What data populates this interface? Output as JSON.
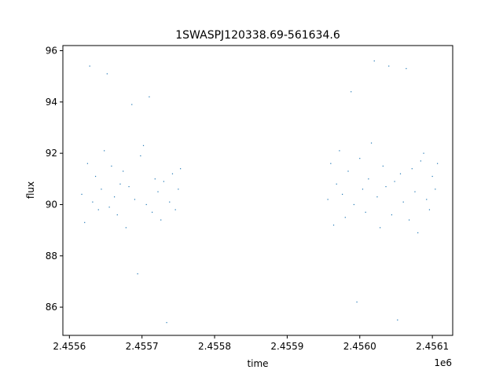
{
  "chart_data": {
    "type": "scatter",
    "title": "1SWASPJ120338.69-561634.6",
    "xlabel": "time",
    "ylabel": "flux",
    "x_offset_label": "1e6",
    "xlim": [
      2455591,
      2456128
    ],
    "ylim": [
      84.9,
      96.2
    ],
    "x_ticks": [
      2455600,
      2455700,
      2455800,
      2455900,
      2456000,
      2456100
    ],
    "x_tick_labels": [
      "2.4556",
      "2.4557",
      "2.4558",
      "2.4559",
      "2.4560",
      "2.4561"
    ],
    "y_ticks": [
      86,
      88,
      90,
      92,
      94,
      96
    ],
    "y_tick_labels": [
      "86",
      "88",
      "90",
      "92",
      "94",
      "96"
    ],
    "grid": false,
    "marker_color": "#1f77b4",
    "points": [
      {
        "x": 2455617,
        "y": 90.4
      },
      {
        "x": 2455621,
        "y": 89.3
      },
      {
        "x": 2455625,
        "y": 91.6
      },
      {
        "x": 2455628,
        "y": 95.4
      },
      {
        "x": 2455632,
        "y": 90.1
      },
      {
        "x": 2455636,
        "y": 91.1
      },
      {
        "x": 2455640,
        "y": 89.8
      },
      {
        "x": 2455644,
        "y": 90.6
      },
      {
        "x": 2455648,
        "y": 92.1
      },
      {
        "x": 2455652,
        "y": 95.1
      },
      {
        "x": 2455655,
        "y": 89.9
      },
      {
        "x": 2455658,
        "y": 91.5
      },
      {
        "x": 2455662,
        "y": 90.3
      },
      {
        "x": 2455666,
        "y": 89.6
      },
      {
        "x": 2455670,
        "y": 90.8
      },
      {
        "x": 2455674,
        "y": 91.3
      },
      {
        "x": 2455678,
        "y": 89.1
      },
      {
        "x": 2455682,
        "y": 90.7
      },
      {
        "x": 2455686,
        "y": 93.9
      },
      {
        "x": 2455690,
        "y": 90.2
      },
      {
        "x": 2455694,
        "y": 87.3
      },
      {
        "x": 2455698,
        "y": 91.9
      },
      {
        "x": 2455702,
        "y": 92.3
      },
      {
        "x": 2455706,
        "y": 90.0
      },
      {
        "x": 2455710,
        "y": 94.2
      },
      {
        "x": 2455714,
        "y": 89.7
      },
      {
        "x": 2455718,
        "y": 91.0
      },
      {
        "x": 2455722,
        "y": 90.5
      },
      {
        "x": 2455726,
        "y": 89.4
      },
      {
        "x": 2455730,
        "y": 90.9
      },
      {
        "x": 2455734,
        "y": 85.4
      },
      {
        "x": 2455738,
        "y": 90.1
      },
      {
        "x": 2455742,
        "y": 91.2
      },
      {
        "x": 2455746,
        "y": 89.8
      },
      {
        "x": 2455750,
        "y": 90.6
      },
      {
        "x": 2455753,
        "y": 91.4
      },
      {
        "x": 2455956,
        "y": 90.2
      },
      {
        "x": 2455960,
        "y": 91.6
      },
      {
        "x": 2455964,
        "y": 89.2
      },
      {
        "x": 2455968,
        "y": 90.8
      },
      {
        "x": 2455972,
        "y": 92.1
      },
      {
        "x": 2455976,
        "y": 90.4
      },
      {
        "x": 2455980,
        "y": 89.5
      },
      {
        "x": 2455984,
        "y": 91.3
      },
      {
        "x": 2455988,
        "y": 94.4
      },
      {
        "x": 2455992,
        "y": 90.0
      },
      {
        "x": 2455996,
        "y": 86.2
      },
      {
        "x": 2456000,
        "y": 91.8
      },
      {
        "x": 2456004,
        "y": 90.6
      },
      {
        "x": 2456008,
        "y": 89.7
      },
      {
        "x": 2456012,
        "y": 91.0
      },
      {
        "x": 2456016,
        "y": 92.4
      },
      {
        "x": 2456020,
        "y": 95.6
      },
      {
        "x": 2456024,
        "y": 90.3
      },
      {
        "x": 2456028,
        "y": 89.1
      },
      {
        "x": 2456032,
        "y": 91.5
      },
      {
        "x": 2456036,
        "y": 90.7
      },
      {
        "x": 2456040,
        "y": 95.4
      },
      {
        "x": 2456044,
        "y": 89.6
      },
      {
        "x": 2456048,
        "y": 90.9
      },
      {
        "x": 2456052,
        "y": 85.5
      },
      {
        "x": 2456056,
        "y": 91.2
      },
      {
        "x": 2456060,
        "y": 90.1
      },
      {
        "x": 2456064,
        "y": 95.3
      },
      {
        "x": 2456068,
        "y": 89.4
      },
      {
        "x": 2456072,
        "y": 91.4
      },
      {
        "x": 2456076,
        "y": 90.5
      },
      {
        "x": 2456080,
        "y": 88.9
      },
      {
        "x": 2456084,
        "y": 91.7
      },
      {
        "x": 2456088,
        "y": 92.0
      },
      {
        "x": 2456092,
        "y": 90.2
      },
      {
        "x": 2456096,
        "y": 89.8
      },
      {
        "x": 2456100,
        "y": 91.1
      },
      {
        "x": 2456104,
        "y": 90.6
      },
      {
        "x": 2456107,
        "y": 91.6
      }
    ]
  }
}
